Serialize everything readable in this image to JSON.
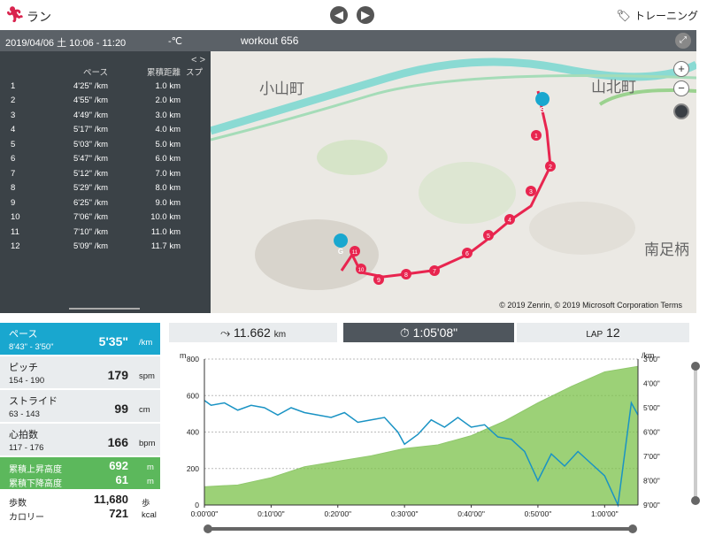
{
  "app": {
    "title": "ラン",
    "logo_icon": "runner-icon",
    "training_label": "トレーニング"
  },
  "nav": {
    "prev_icon": "left-arrow-icon",
    "next_icon": "right-arrow-icon"
  },
  "header": {
    "date": "2019/04/06 土 10:06 - 11:20",
    "temperature": "-℃",
    "workout_name": "workout 656"
  },
  "laps": {
    "columns": [
      "ペース",
      "累積距離",
      "スプ"
    ],
    "rows": [
      {
        "n": "1",
        "pace": "4'25\" /km",
        "dist": "1.0 km"
      },
      {
        "n": "2",
        "pace": "4'55\" /km",
        "dist": "2.0 km"
      },
      {
        "n": "3",
        "pace": "4'49\" /km",
        "dist": "3.0 km"
      },
      {
        "n": "4",
        "pace": "5'17\" /km",
        "dist": "4.0 km"
      },
      {
        "n": "5",
        "pace": "5'03\" /km",
        "dist": "5.0 km"
      },
      {
        "n": "6",
        "pace": "5'47\" /km",
        "dist": "6.0 km"
      },
      {
        "n": "7",
        "pace": "5'12\" /km",
        "dist": "7.0 km"
      },
      {
        "n": "8",
        "pace": "5'29\" /km",
        "dist": "8.0 km"
      },
      {
        "n": "9",
        "pace": "6'25\" /km",
        "dist": "9.0 km"
      },
      {
        "n": "10",
        "pace": "7'06\" /km",
        "dist": "10.0 km"
      },
      {
        "n": "11",
        "pace": "7'10\" /km",
        "dist": "11.0 km"
      },
      {
        "n": "12",
        "pace": "5'09\" /km",
        "dist": "11.7 km"
      }
    ]
  },
  "map": {
    "labels": [
      "小山町",
      "山北町",
      "南足柄"
    ],
    "start_marker": "S",
    "goal_marker": "G",
    "km_markers": [
      "1",
      "2",
      "3",
      "4",
      "5",
      "6",
      "7",
      "8",
      "9",
      "10",
      "11"
    ],
    "copyright": "© 2019 Zenrin, © 2019 Microsoft Corporation Terms",
    "zoom_in": "+",
    "zoom_out": "−",
    "route_color": "#e8254f"
  },
  "stats": {
    "pace": {
      "label": "ペース",
      "range": "8'43\" - 3'50\"",
      "value": "5'35\"",
      "unit": "/km"
    },
    "pitch": {
      "label": "ピッチ",
      "range": "154 - 190",
      "value": "179",
      "unit": "spm"
    },
    "stride": {
      "label": "ストライド",
      "range": "63 - 143",
      "value": "99",
      "unit": "cm"
    },
    "hr": {
      "label": "心拍数",
      "range": "117 - 176",
      "value": "166",
      "unit": "bpm"
    },
    "ascent": {
      "label": "累積上昇高度",
      "value": "692",
      "unit": "m"
    },
    "descent": {
      "label": "累積下降高度",
      "value": "61",
      "unit": "m"
    },
    "steps": {
      "label": "歩数",
      "value": "11,680",
      "unit": "歩"
    },
    "calories": {
      "label": "カロリー",
      "value": "721",
      "unit": "kcal"
    }
  },
  "tabs": {
    "distance": {
      "value": "11.662",
      "unit": "km"
    },
    "time": {
      "value": "1:05'08\""
    },
    "lap": {
      "label": "LAP",
      "value": "12"
    }
  },
  "chart_data": {
    "type": "line",
    "y_left_unit": "m",
    "y_right_unit": "/km",
    "y_left_ticks": [
      "800",
      "600",
      "400",
      "200",
      "0"
    ],
    "y_right_ticks": [
      "3'00\"",
      "4'00\"",
      "5'00\"",
      "6'00\"",
      "7'00\"",
      "8'00\"",
      "9'00\""
    ],
    "x_ticks": [
      "0:00'00\"",
      "0:10'00\"",
      "0:20'00\"",
      "0:30'00\"",
      "0:40'00\"",
      "0:50'00\"",
      "1:00'00\""
    ],
    "ylim_left": [
      0,
      800
    ],
    "ylim_right_min": [
      3,
      9
    ],
    "series": [
      {
        "name": "elevation",
        "color": "#7cc24a",
        "x_min": [
          0,
          5,
          10,
          15,
          20,
          25,
          30,
          35,
          40,
          45,
          50,
          55,
          60,
          65
        ],
        "values": [
          100,
          110,
          150,
          210,
          240,
          270,
          310,
          330,
          380,
          460,
          560,
          650,
          730,
          760
        ]
      },
      {
        "name": "pace",
        "color": "#1a93c4",
        "x_min": [
          0,
          1,
          3,
          5,
          7,
          9,
          11,
          13,
          15,
          17,
          19,
          21,
          23,
          25,
          27,
          29,
          30,
          32,
          34,
          36,
          38,
          40,
          42,
          44,
          46,
          48,
          50,
          52,
          54,
          56,
          58,
          60,
          62,
          64,
          65
        ],
        "values": [
          4.7,
          4.9,
          4.8,
          5.1,
          4.9,
          5.0,
          5.3,
          5.0,
          5.2,
          5.3,
          5.4,
          5.2,
          5.6,
          5.5,
          5.4,
          6.0,
          6.5,
          6.1,
          5.5,
          5.8,
          5.4,
          5.8,
          5.7,
          6.2,
          6.3,
          6.8,
          8.0,
          6.9,
          7.4,
          6.8,
          7.3,
          7.8,
          9.0,
          4.8,
          5.3
        ]
      }
    ]
  }
}
